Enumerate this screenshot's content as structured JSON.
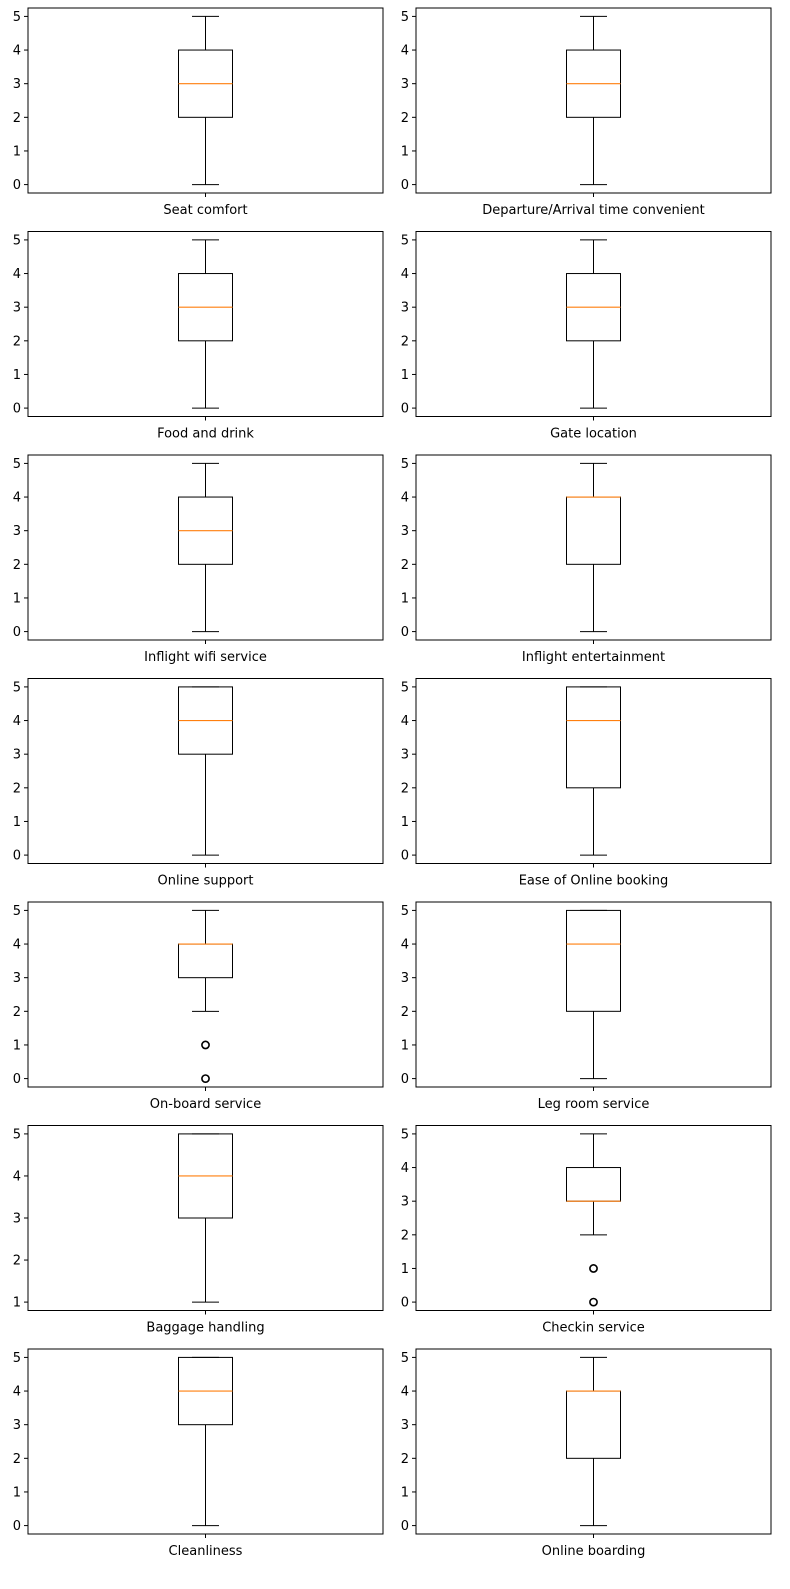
{
  "chart_data": [
    {
      "type": "box",
      "xlabel": "Seat comfort",
      "yticks": [
        0,
        1,
        2,
        3,
        4,
        5
      ],
      "box": {
        "whisker_low": 0,
        "q1": 2,
        "median": 3,
        "q3": 4,
        "whisker_high": 5,
        "outliers": []
      }
    },
    {
      "type": "box",
      "xlabel": "Departure/Arrival time convenient",
      "yticks": [
        0,
        1,
        2,
        3,
        4,
        5
      ],
      "box": {
        "whisker_low": 0,
        "q1": 2,
        "median": 3,
        "q3": 4,
        "whisker_high": 5,
        "outliers": []
      }
    },
    {
      "type": "box",
      "xlabel": "Food and drink",
      "yticks": [
        0,
        1,
        2,
        3,
        4,
        5
      ],
      "box": {
        "whisker_low": 0,
        "q1": 2,
        "median": 3,
        "q3": 4,
        "whisker_high": 5,
        "outliers": []
      }
    },
    {
      "type": "box",
      "xlabel": "Gate location",
      "yticks": [
        0,
        1,
        2,
        3,
        4,
        5
      ],
      "box": {
        "whisker_low": 0,
        "q1": 2,
        "median": 3,
        "q3": 4,
        "whisker_high": 5,
        "outliers": []
      }
    },
    {
      "type": "box",
      "xlabel": "Inflight wifi service",
      "yticks": [
        0,
        1,
        2,
        3,
        4,
        5
      ],
      "box": {
        "whisker_low": 0,
        "q1": 2,
        "median": 3,
        "q3": 4,
        "whisker_high": 5,
        "outliers": []
      }
    },
    {
      "type": "box",
      "xlabel": "Inflight entertainment",
      "yticks": [
        0,
        1,
        2,
        3,
        4,
        5
      ],
      "box": {
        "whisker_low": 0,
        "q1": 2,
        "median": 4,
        "q3": 4,
        "whisker_high": 5,
        "outliers": []
      }
    },
    {
      "type": "box",
      "xlabel": "Online support",
      "yticks": [
        0,
        1,
        2,
        3,
        4,
        5
      ],
      "box": {
        "whisker_low": 0,
        "q1": 3,
        "median": 4,
        "q3": 5,
        "whisker_high": 5,
        "outliers": []
      }
    },
    {
      "type": "box",
      "xlabel": "Ease of Online booking",
      "yticks": [
        0,
        1,
        2,
        3,
        4,
        5
      ],
      "box": {
        "whisker_low": 0,
        "q1": 2,
        "median": 4,
        "q3": 5,
        "whisker_high": 5,
        "outliers": []
      }
    },
    {
      "type": "box",
      "xlabel": "On-board service",
      "yticks": [
        0,
        1,
        2,
        3,
        4,
        5
      ],
      "box": {
        "whisker_low": 2,
        "q1": 3,
        "median": 4,
        "q3": 4,
        "whisker_high": 5,
        "outliers": [
          1,
          0
        ]
      }
    },
    {
      "type": "box",
      "xlabel": "Leg room service",
      "yticks": [
        0,
        1,
        2,
        3,
        4,
        5
      ],
      "box": {
        "whisker_low": 0,
        "q1": 2,
        "median": 4,
        "q3": 5,
        "whisker_high": 5,
        "outliers": []
      }
    },
    {
      "type": "box",
      "xlabel": "Baggage handling",
      "yticks": [
        1,
        2,
        3,
        4,
        5
      ],
      "box": {
        "whisker_low": 1,
        "q1": 3,
        "median": 4,
        "q3": 5,
        "whisker_high": 5,
        "outliers": []
      }
    },
    {
      "type": "box",
      "xlabel": "Checkin service",
      "yticks": [
        0,
        1,
        2,
        3,
        4,
        5
      ],
      "box": {
        "whisker_low": 2,
        "q1": 3,
        "median": 3,
        "q3": 4,
        "whisker_high": 5,
        "outliers": [
          1,
          0
        ]
      }
    },
    {
      "type": "box",
      "xlabel": "Cleanliness",
      "yticks": [
        0,
        1,
        2,
        3,
        4,
        5
      ],
      "box": {
        "whisker_low": 0,
        "q1": 3,
        "median": 4,
        "q3": 5,
        "whisker_high": 5,
        "outliers": []
      }
    },
    {
      "type": "box",
      "xlabel": "Online boarding",
      "yticks": [
        0,
        1,
        2,
        3,
        4,
        5
      ],
      "box": {
        "whisker_low": 0,
        "q1": 2,
        "median": 4,
        "q3": 4,
        "whisker_high": 5,
        "outliers": []
      }
    }
  ],
  "colors": {
    "median": "#ff7f0e",
    "box": "#000000",
    "axes": "#000000",
    "background": "#ffffff"
  }
}
